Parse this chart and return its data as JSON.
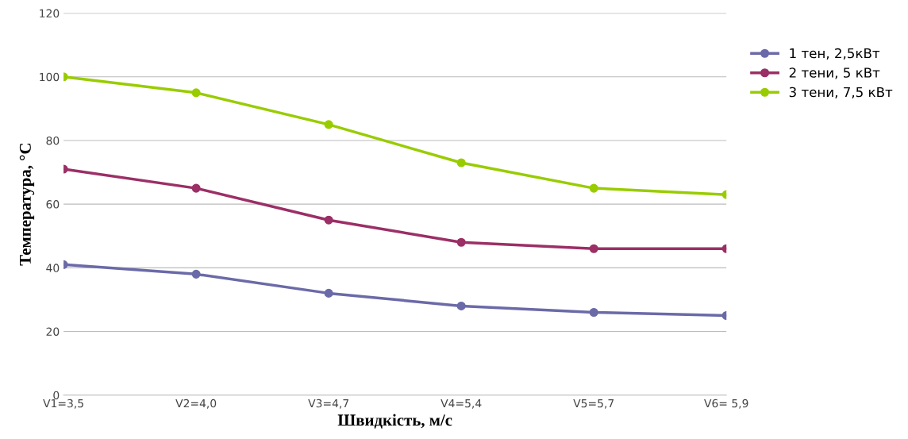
{
  "chart_data": {
    "type": "line",
    "xlabel": "Швидкість, м/с",
    "ylabel": "Температура, °С",
    "categories": [
      "V1=3,5",
      "V2=4,0",
      "V3=4,7",
      "V4=5,4",
      "V5=5,7",
      "V6= 5,9"
    ],
    "series": [
      {
        "name": "1 тен, 2,5кВт",
        "color": "#6b6aa8",
        "values": [
          41,
          38,
          32,
          28,
          26,
          25
        ]
      },
      {
        "name": "2 тени, 5 кВт",
        "color": "#9b2f66",
        "values": [
          71,
          65,
          55,
          48,
          46,
          46
        ]
      },
      {
        "name": "3 тени, 7,5 кВт",
        "color": "#99cc00",
        "values": [
          100,
          95,
          85,
          73,
          65,
          63
        ]
      }
    ],
    "ylim": [
      0,
      120
    ],
    "yticks": [
      0,
      20,
      40,
      60,
      80,
      100,
      120
    ],
    "grid": "y",
    "legend": "right",
    "marker": "circle",
    "line_style": "solid"
  }
}
